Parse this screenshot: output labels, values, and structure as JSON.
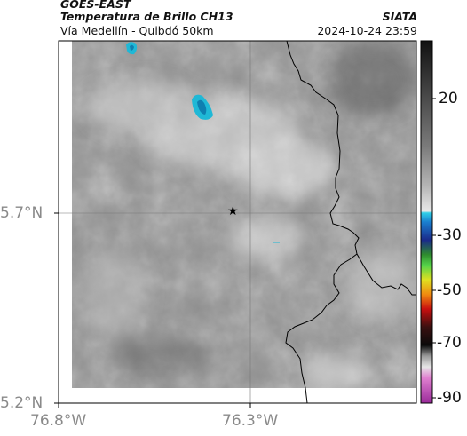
{
  "header": {
    "satellite": "GOES-EAST",
    "product": "Temperatura de Brillo CH13",
    "region": "Vía Medellín - Quibdó 50km",
    "organization": "SIATA",
    "datetime": "2024-10-24 23:59"
  },
  "axes": {
    "lat_ticks": [
      {
        "label": "5.7°N",
        "lat": 5.7
      },
      {
        "label": "5.2°N",
        "lat": 5.2
      }
    ],
    "lon_ticks": [
      {
        "label": "76.8°W",
        "lon": -76.8
      },
      {
        "label": "76.3°W",
        "lon": -76.3
      }
    ]
  },
  "colorbar": {
    "ticks": [
      {
        "label": "20",
        "value": 20
      },
      {
        "label": "-30",
        "value": -30
      },
      {
        "label": "-50",
        "value": -50
      },
      {
        "label": "-70",
        "value": -70
      },
      {
        "label": "-90",
        "value": -90
      }
    ]
  },
  "marker": {
    "name": "star-marker",
    "symbol": "★"
  },
  "colors": {
    "cold_cloud": "#1fb8d6",
    "background_gray": "#8c8c8c",
    "border_line": "#000000"
  }
}
